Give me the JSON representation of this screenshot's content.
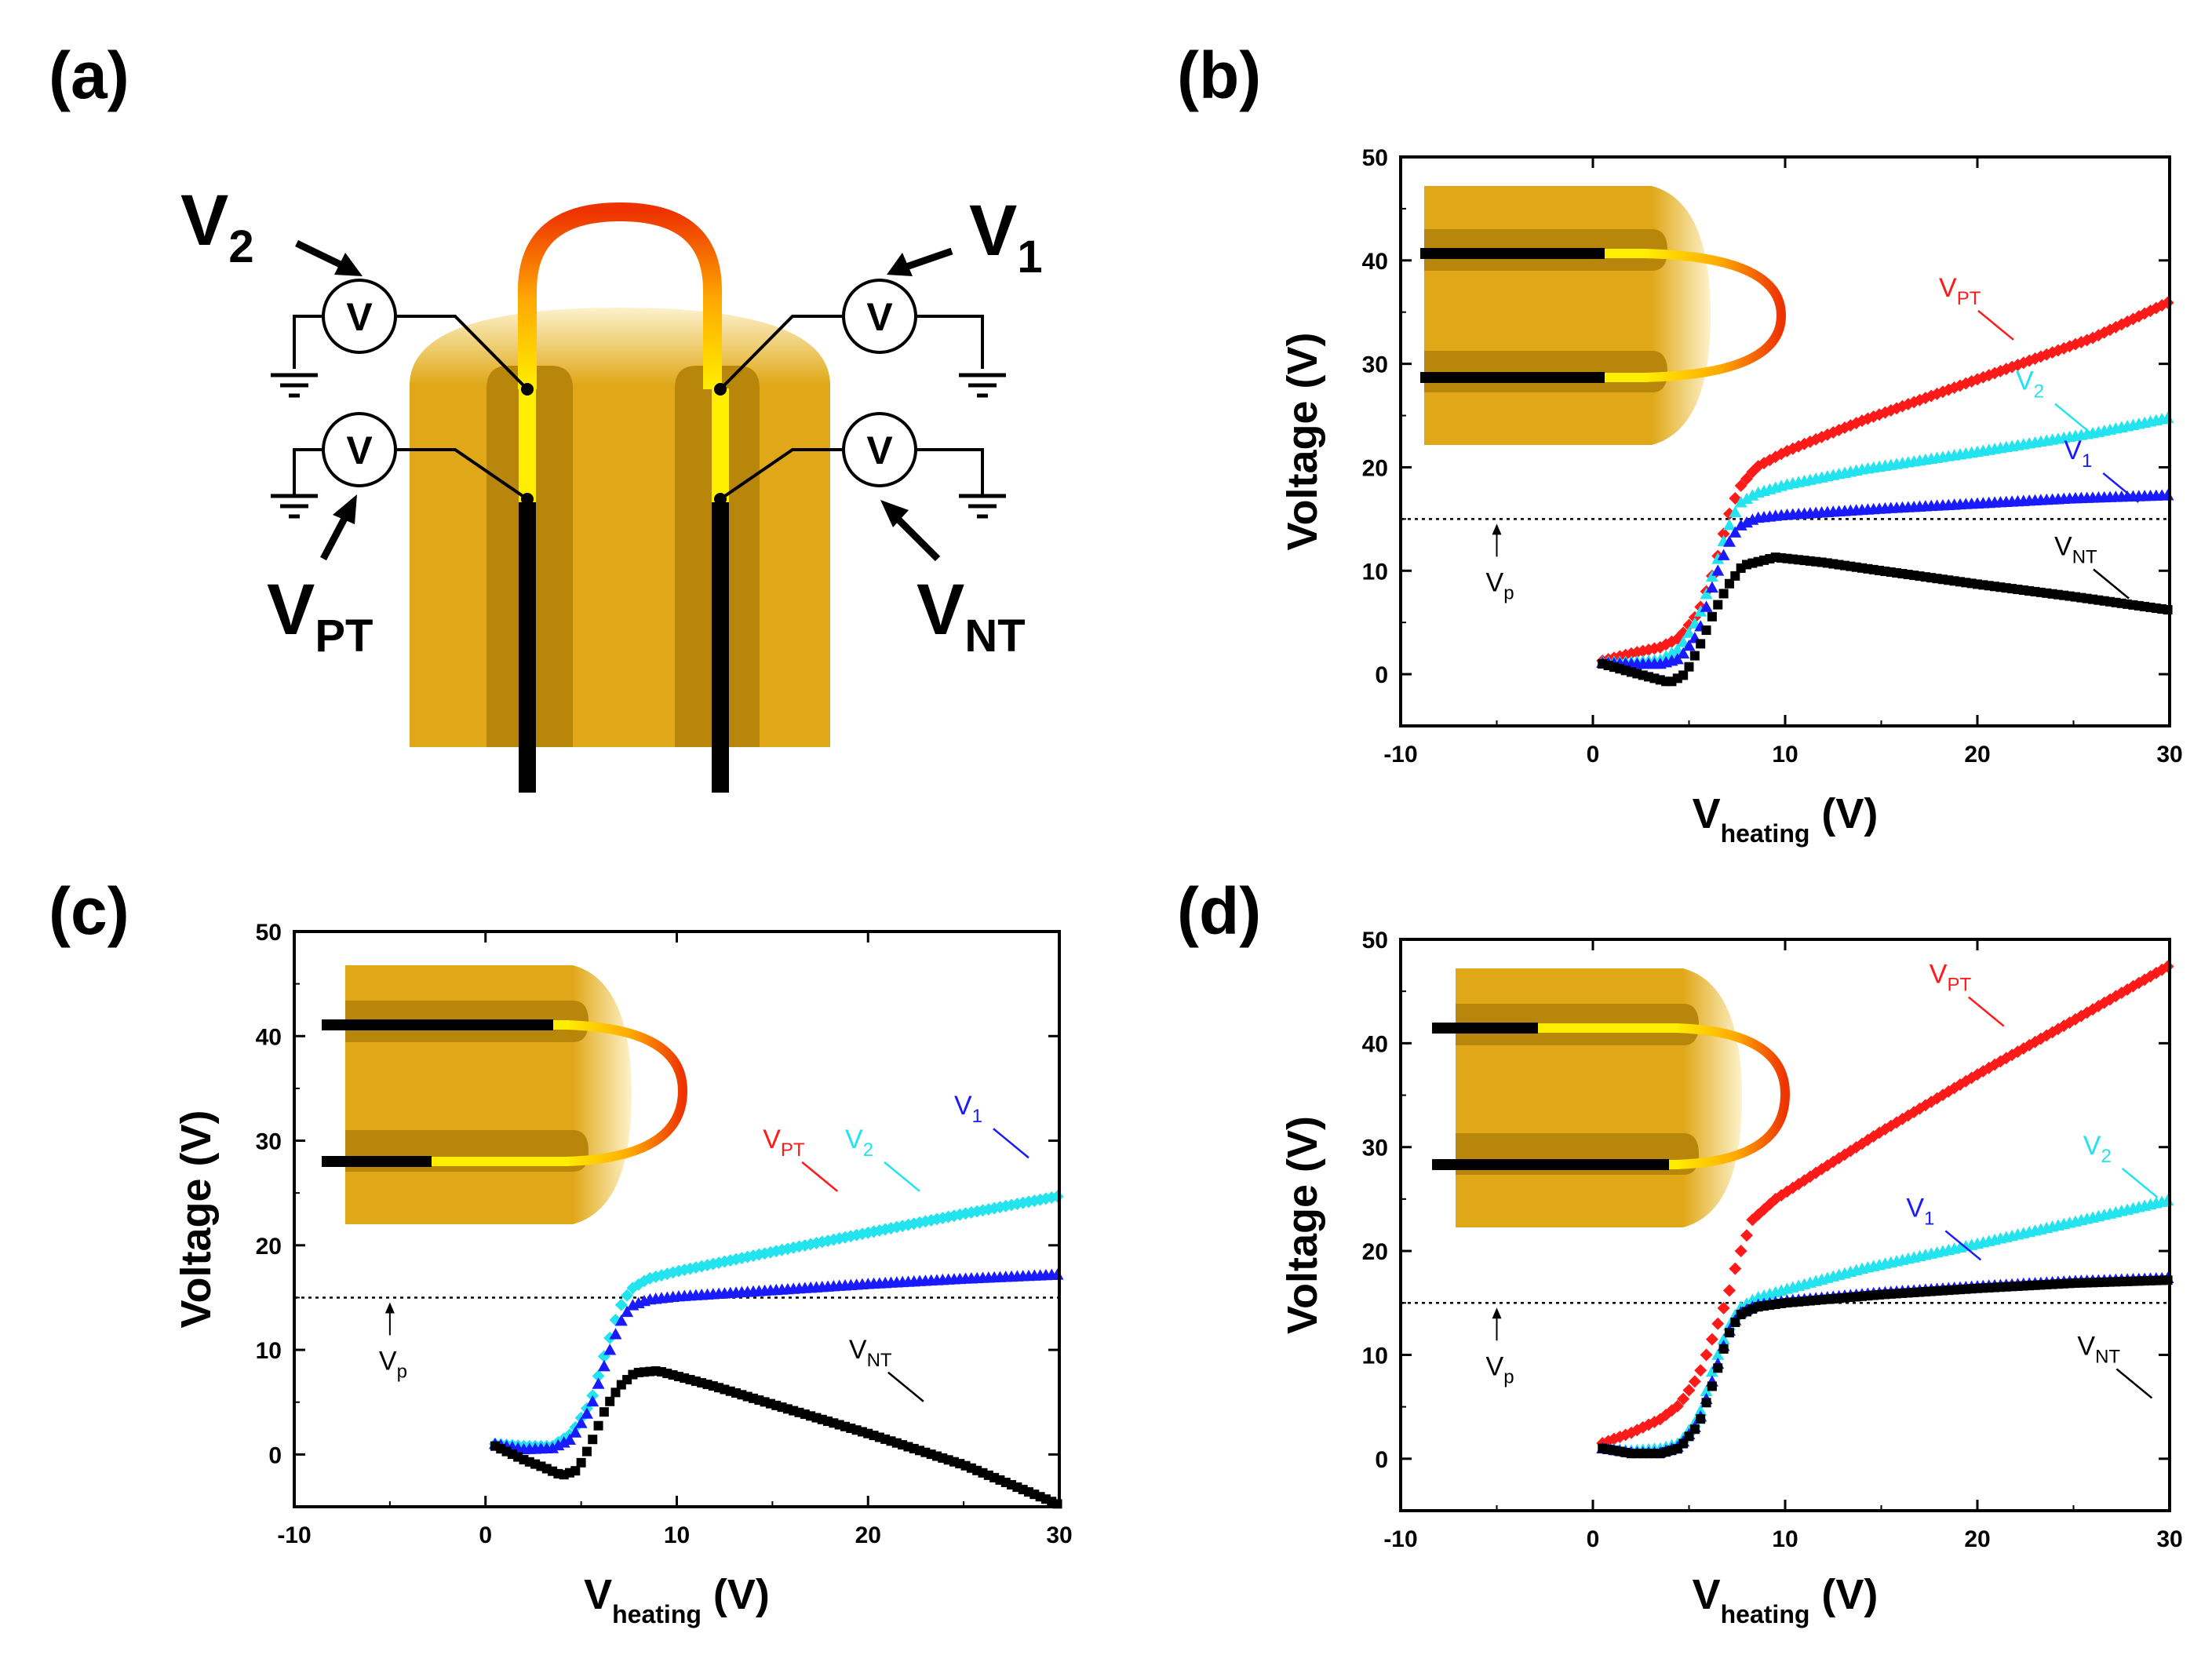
{
  "panels": {
    "a": {
      "label": "(a)"
    },
    "b": {
      "label": "(b)"
    },
    "c": {
      "label": "(c)"
    },
    "d": {
      "label": "(d)"
    }
  },
  "schematic": {
    "meter_symbol": "V",
    "labels": [
      {
        "main": "V",
        "sub": "2"
      },
      {
        "main": "V",
        "sub": "1"
      },
      {
        "main": "V",
        "sub": "PT"
      },
      {
        "main": "V",
        "sub": "NT"
      }
    ]
  },
  "colors": {
    "V_PT": "#ff1a1a",
    "V_2": "#22e3ee",
    "V_1": "#1a1aff",
    "V_NT": "#000000",
    "wax": "#e0a818",
    "wax_dark": "#b8860b",
    "wire_hot": "#ee3300",
    "wire_warm": "#ffee00"
  },
  "chart_data": [
    {
      "panel": "(b)",
      "type": "scatter",
      "xlabel": "V",
      "xlabel_sub": "heating",
      "xlabel_unit": " (V)",
      "ylabel": "Voltage (V)",
      "xlim": [
        -10,
        30
      ],
      "ylim": [
        -5,
        50
      ],
      "xticks": [
        -10,
        0,
        10,
        20,
        30
      ],
      "yticks": [
        0,
        10,
        20,
        30,
        40,
        50
      ],
      "reference_line": {
        "y": 15,
        "label": "V",
        "label_sub": "p"
      },
      "series": [
        {
          "name": "V",
          "sub": "PT",
          "marker": "diamond",
          "points": [
            [
              0.5,
              1.3
            ],
            [
              2,
              2
            ],
            [
              3.5,
              2.6
            ],
            [
              4.5,
              3.5
            ],
            [
              5.5,
              6
            ],
            [
              6.3,
              10
            ],
            [
              7,
              15
            ],
            [
              7.6,
              18
            ],
            [
              8.5,
              20
            ],
            [
              10,
              21.5
            ],
            [
              14,
              24.5
            ],
            [
              20,
              28.5
            ],
            [
              26,
              32.5
            ],
            [
              30,
              36
            ]
          ]
        },
        {
          "name": "V",
          "sub": "2",
          "marker": "triangle",
          "points": [
            [
              0.5,
              1.2
            ],
            [
              2,
              1.2
            ],
            [
              3.5,
              1.4
            ],
            [
              4.5,
              2.5
            ],
            [
              5.5,
              5.5
            ],
            [
              6.3,
              10
            ],
            [
              7,
              14
            ],
            [
              7.6,
              16.5
            ],
            [
              8.5,
              17.5
            ],
            [
              10,
              18.3
            ],
            [
              14,
              19.8
            ],
            [
              20,
              21.5
            ],
            [
              26,
              23.3
            ],
            [
              30,
              24.8
            ]
          ]
        },
        {
          "name": "V",
          "sub": "1",
          "marker": "triangle",
          "points": [
            [
              0.5,
              1.1
            ],
            [
              2,
              1
            ],
            [
              3.5,
              1
            ],
            [
              4.5,
              1.5
            ],
            [
              5.5,
              4
            ],
            [
              6.3,
              9
            ],
            [
              7,
              12.5
            ],
            [
              7.6,
              14.3
            ],
            [
              8.5,
              15.1
            ],
            [
              10,
              15.4
            ],
            [
              15,
              16
            ],
            [
              20,
              16.5
            ],
            [
              25,
              17
            ],
            [
              30,
              17.3
            ]
          ]
        },
        {
          "name": "V",
          "sub": "NT",
          "marker": "square",
          "points": [
            [
              0.5,
              1
            ],
            [
              2,
              0.2
            ],
            [
              3,
              -0.3
            ],
            [
              4,
              -0.8
            ],
            [
              4.8,
              0
            ],
            [
              5.5,
              2.5
            ],
            [
              6.3,
              6
            ],
            [
              7,
              8.5
            ],
            [
              7.8,
              10.5
            ],
            [
              9.5,
              11.3
            ],
            [
              12,
              10.8
            ],
            [
              15,
              10
            ],
            [
              20,
              8.7
            ],
            [
              25,
              7.5
            ],
            [
              30,
              6.2
            ]
          ]
        }
      ],
      "series_labels": [
        {
          "series": 0,
          "at": [
            18,
            36.5
          ]
        },
        {
          "series": 1,
          "at": [
            22,
            27.5
          ]
        },
        {
          "series": 2,
          "at": [
            24.5,
            20.8
          ]
        },
        {
          "series": 3,
          "at": [
            24,
            11.5
          ]
        }
      ]
    },
    {
      "panel": "(c)",
      "type": "scatter",
      "xlabel": "V",
      "xlabel_sub": "heating",
      "xlabel_unit": " (V)",
      "ylabel": "Voltage (V)",
      "xlim": [
        -10,
        30
      ],
      "ylim": [
        -5,
        50
      ],
      "xticks": [
        -10,
        0,
        10,
        20,
        30
      ],
      "yticks": [
        0,
        10,
        20,
        30,
        40,
        50
      ],
      "reference_line": {
        "y": 15,
        "label": "V",
        "label_sub": "p"
      },
      "series": [
        {
          "name": "V",
          "sub": "2",
          "marker": "diamond",
          "points": [
            [
              0.5,
              1
            ],
            [
              2,
              0.8
            ],
            [
              3.5,
              0.8
            ],
            [
              4.5,
              2
            ],
            [
              5.5,
              5
            ],
            [
              6.3,
              10
            ],
            [
              7,
              14
            ],
            [
              7.6,
              15.8
            ],
            [
              8.5,
              16.8
            ],
            [
              10,
              17.5
            ],
            [
              14,
              19
            ],
            [
              20,
              21.2
            ],
            [
              25,
              23
            ],
            [
              30,
              24.7
            ]
          ]
        },
        {
          "name": "V",
          "sub": "1",
          "marker": "triangle",
          "points": [
            [
              0.5,
              1
            ],
            [
              2,
              0.5
            ],
            [
              3.5,
              0.6
            ],
            [
              4.5,
              1.5
            ],
            [
              5.5,
              4.5
            ],
            [
              6.3,
              9
            ],
            [
              7,
              12.5
            ],
            [
              7.6,
              14.2
            ],
            [
              8.5,
              14.8
            ],
            [
              10,
              15.1
            ],
            [
              15,
              15.7
            ],
            [
              20,
              16.3
            ],
            [
              25,
              16.8
            ],
            [
              30,
              17.2
            ]
          ]
        },
        {
          "name": "V",
          "sub": "NT",
          "marker": "square",
          "points": [
            [
              0.5,
              0.8
            ],
            [
              2,
              -0.5
            ],
            [
              3,
              -1.2
            ],
            [
              4,
              -2
            ],
            [
              4.8,
              -1.5
            ],
            [
              5.5,
              1
            ],
            [
              6.3,
              4.5
            ],
            [
              7,
              6.5
            ],
            [
              7.8,
              7.8
            ],
            [
              9,
              8
            ],
            [
              12,
              6.5
            ],
            [
              15,
              4.8
            ],
            [
              20,
              2
            ],
            [
              25,
              -1
            ],
            [
              30,
              -4.8
            ]
          ]
        }
      ],
      "series_labels": [
        {
          "series": null,
          "name": "V",
          "sub": "PT",
          "color_key": "V_PT",
          "at": [
            14.5,
            29.3
          ]
        },
        {
          "series": 0,
          "at": [
            18.8,
            29.3
          ]
        },
        {
          "series": 1,
          "at": [
            24.5,
            32.5
          ]
        },
        {
          "series": 2,
          "at": [
            19,
            9.2
          ]
        }
      ]
    },
    {
      "panel": "(d)",
      "type": "scatter",
      "xlabel": "V",
      "xlabel_sub": "heating",
      "xlabel_unit": " (V)",
      "ylabel": "Voltage (V)",
      "xlim": [
        -10,
        30
      ],
      "ylim": [
        -5,
        50
      ],
      "xticks": [
        -10,
        0,
        10,
        20,
        30
      ],
      "yticks": [
        0,
        10,
        20,
        30,
        40,
        50
      ],
      "reference_line": {
        "y": 15,
        "label": "V",
        "label_sub": "p"
      },
      "series": [
        {
          "name": "V",
          "sub": "PT",
          "marker": "diamond",
          "points": [
            [
              0.5,
              1.5
            ],
            [
              2,
              2.5
            ],
            [
              3.5,
              3.8
            ],
            [
              4.5,
              5.2
            ],
            [
              5.5,
              8
            ],
            [
              6.3,
              12
            ],
            [
              7,
              15.5
            ],
            [
              7.5,
              19
            ],
            [
              8.3,
              23
            ],
            [
              9.5,
              25
            ],
            [
              12,
              28
            ],
            [
              15,
              31.5
            ],
            [
              20,
              37
            ],
            [
              25,
              42.2
            ],
            [
              30,
              47.5
            ]
          ]
        },
        {
          "name": "V",
          "sub": "2",
          "marker": "triangle",
          "points": [
            [
              0.5,
              1
            ],
            [
              2,
              0.8
            ],
            [
              3.5,
              1
            ],
            [
              4.5,
              1.5
            ],
            [
              5.5,
              4
            ],
            [
              6.3,
              9
            ],
            [
              7,
              12.5
            ],
            [
              7.6,
              14.5
            ],
            [
              8.5,
              15.5
            ],
            [
              10,
              16.3
            ],
            [
              14,
              18.3
            ],
            [
              20,
              20.7
            ],
            [
              25,
              22.8
            ],
            [
              30,
              24.9
            ]
          ]
        },
        {
          "name": "V",
          "sub": "1",
          "marker": "triangle",
          "points": [
            [
              0.5,
              1
            ],
            [
              2,
              0.6
            ],
            [
              3.5,
              0.6
            ],
            [
              4.5,
              1.2
            ],
            [
              5.5,
              3.5
            ],
            [
              6.3,
              8
            ],
            [
              7,
              12
            ],
            [
              7.6,
              14
            ],
            [
              8.5,
              14.8
            ],
            [
              10,
              15.2
            ],
            [
              15,
              16
            ],
            [
              20,
              16.6
            ],
            [
              25,
              17.1
            ],
            [
              30,
              17.4
            ]
          ]
        },
        {
          "name": "V",
          "sub": "NT",
          "marker": "square",
          "points": [
            [
              0.5,
              1
            ],
            [
              2,
              0.5
            ],
            [
              3.5,
              0.5
            ],
            [
              4.5,
              1
            ],
            [
              5.5,
              3.3
            ],
            [
              6.3,
              7.5
            ],
            [
              7,
              11.8
            ],
            [
              7.6,
              13.8
            ],
            [
              8.5,
              14.6
            ],
            [
              10,
              15
            ],
            [
              15,
              15.8
            ],
            [
              20,
              16.4
            ],
            [
              25,
              16.9
            ],
            [
              30,
              17.2
            ]
          ]
        }
      ],
      "series_labels": [
        {
          "series": 0,
          "at": [
            17.5,
            45.8
          ]
        },
        {
          "series": 1,
          "at": [
            25.5,
            29.3
          ]
        },
        {
          "series": 2,
          "at": [
            16.3,
            23.3
          ]
        },
        {
          "series": 3,
          "at": [
            25.2,
            10
          ]
        }
      ]
    }
  ]
}
